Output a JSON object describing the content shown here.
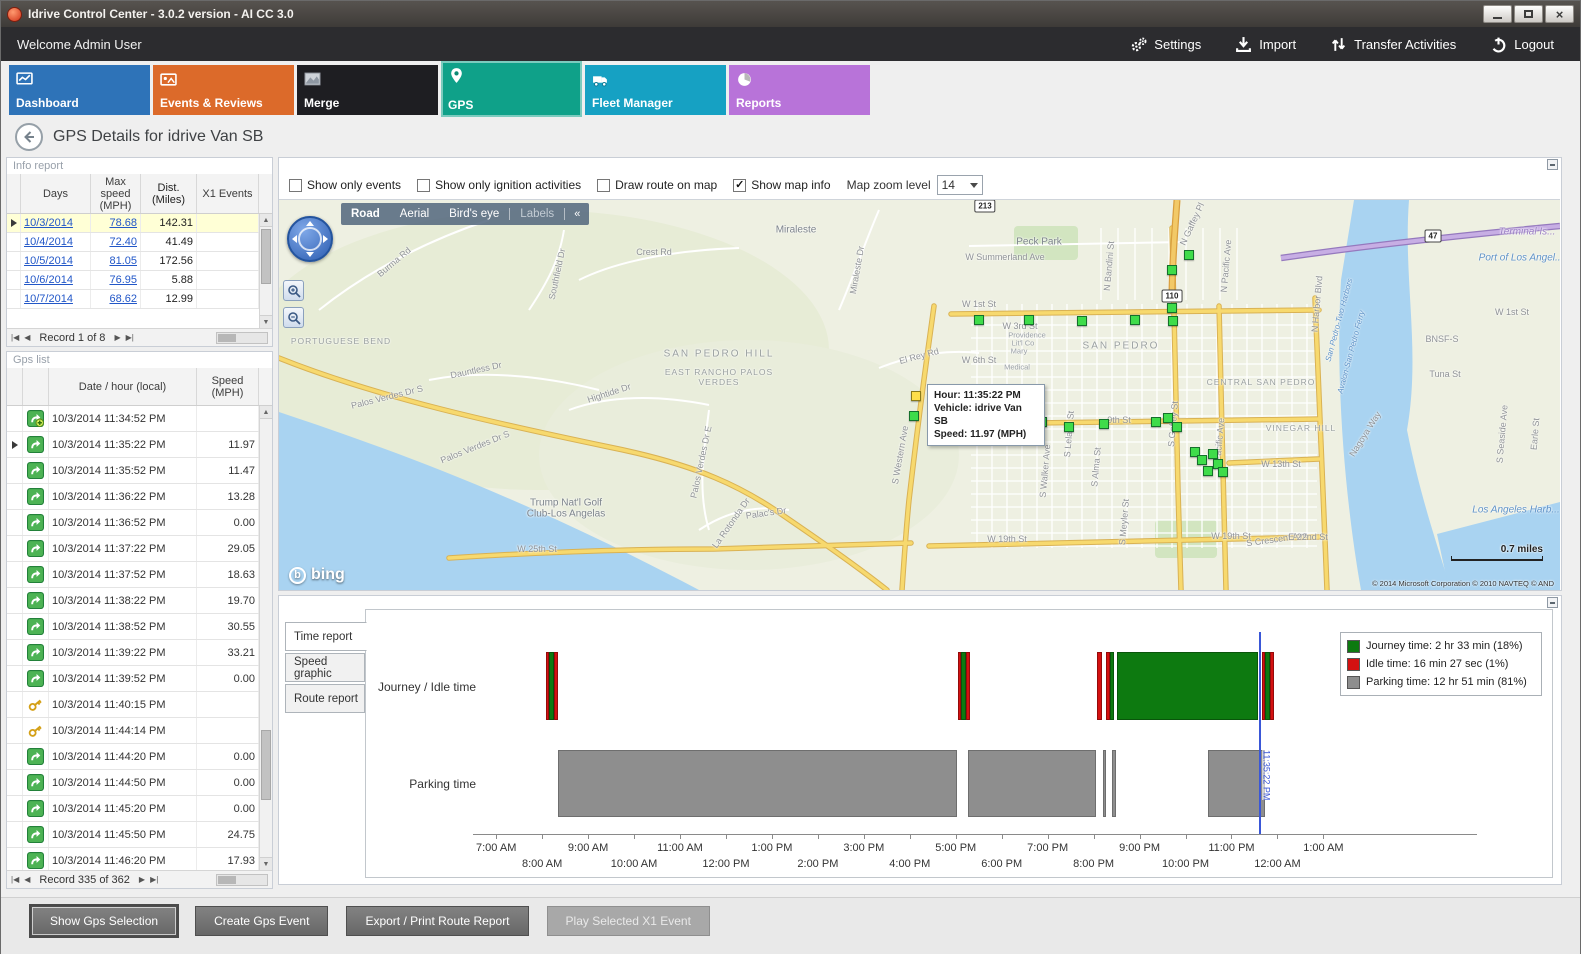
{
  "window": {
    "title": "Idrive Control Center - 3.0.2 version - AI CC 3.0"
  },
  "topbar": {
    "welcome": "Welcome Admin User",
    "actions": [
      {
        "id": "settings",
        "label": "Settings"
      },
      {
        "id": "import",
        "label": "Import"
      },
      {
        "id": "transfer",
        "label": "Transfer Activities"
      },
      {
        "id": "logout",
        "label": "Logout"
      }
    ]
  },
  "nav": {
    "tabs": [
      {
        "id": "dashboard",
        "label": "Dashboard",
        "color": "#2e73b8",
        "selected": false
      },
      {
        "id": "events",
        "label": "Events & Reviews",
        "color": "#dc6a2a",
        "selected": false
      },
      {
        "id": "merge",
        "label": "Merge",
        "color": "#1e1e22",
        "selected": false
      },
      {
        "id": "gps",
        "label": "GPS",
        "color": "#0fa189",
        "selected": true
      },
      {
        "id": "fleet",
        "label": "Fleet Manager",
        "color": "#16a1c3",
        "selected": false
      },
      {
        "id": "reports",
        "label": "Reports",
        "color": "#b873d9",
        "selected": false
      }
    ]
  },
  "page": {
    "title": "GPS Details for idrive Van SB"
  },
  "info_report": {
    "title": "Info report",
    "columns": [
      "Days",
      "Max speed (MPH)",
      "Dist. (Miles)",
      "X1 Events"
    ],
    "rows": [
      {
        "days": "10/3/2014",
        "max_speed": "78.68",
        "dist": "142.31",
        "x1": "",
        "selected": true
      },
      {
        "days": "10/4/2014",
        "max_speed": "72.40",
        "dist": "41.49",
        "x1": "",
        "selected": false
      },
      {
        "days": "10/5/2014",
        "max_speed": "81.05",
        "dist": "172.56",
        "x1": "",
        "selected": false
      },
      {
        "days": "10/6/2014",
        "max_speed": "76.95",
        "dist": "5.88",
        "x1": "",
        "selected": false
      },
      {
        "days": "10/7/2014",
        "max_speed": "68.62",
        "dist": "12.99",
        "x1": "",
        "selected": false
      }
    ],
    "pager": {
      "text": "Record 1 of 8"
    }
  },
  "gps_list": {
    "title": "Gps list",
    "columns": [
      "Date / hour (local)",
      "Speed (MPH)"
    ],
    "rows": [
      {
        "icon": "start",
        "time": "10/3/2014 11:34:52 PM",
        "speed": "",
        "selected": false
      },
      {
        "icon": "point",
        "time": "10/3/2014 11:35:22 PM",
        "speed": "11.97",
        "selected": true
      },
      {
        "icon": "point",
        "time": "10/3/2014 11:35:52 PM",
        "speed": "11.47",
        "selected": false
      },
      {
        "icon": "point",
        "time": "10/3/2014 11:36:22 PM",
        "speed": "13.28",
        "selected": false
      },
      {
        "icon": "point",
        "time": "10/3/2014 11:36:52 PM",
        "speed": "0.00",
        "selected": false
      },
      {
        "icon": "point",
        "time": "10/3/2014 11:37:22 PM",
        "speed": "29.05",
        "selected": false
      },
      {
        "icon": "point",
        "time": "10/3/2014 11:37:52 PM",
        "speed": "18.63",
        "selected": false
      },
      {
        "icon": "point",
        "time": "10/3/2014 11:38:22 PM",
        "speed": "19.70",
        "selected": false
      },
      {
        "icon": "point",
        "time": "10/3/2014 11:38:52 PM",
        "speed": "30.55",
        "selected": false
      },
      {
        "icon": "point",
        "time": "10/3/2014 11:39:22 PM",
        "speed": "33.21",
        "selected": false
      },
      {
        "icon": "point",
        "time": "10/3/2014 11:39:52 PM",
        "speed": "0.00",
        "selected": false
      },
      {
        "icon": "key",
        "time": "10/3/2014 11:40:15 PM",
        "speed": "",
        "selected": false
      },
      {
        "icon": "key",
        "time": "10/3/2014 11:44:14 PM",
        "speed": "",
        "selected": false
      },
      {
        "icon": "point",
        "time": "10/3/2014 11:44:20 PM",
        "speed": "0.00",
        "selected": false
      },
      {
        "icon": "point",
        "time": "10/3/2014 11:44:50 PM",
        "speed": "0.00",
        "selected": false
      },
      {
        "icon": "point",
        "time": "10/3/2014 11:45:20 PM",
        "speed": "0.00",
        "selected": false
      },
      {
        "icon": "point",
        "time": "10/3/2014 11:45:50 PM",
        "speed": "24.75",
        "selected": false
      },
      {
        "icon": "point",
        "time": "10/3/2014 11:46:20 PM",
        "speed": "17.93",
        "selected": false
      }
    ],
    "pager": {
      "text": "Record 335 of 362"
    }
  },
  "map_toolbar": {
    "checkboxes": [
      {
        "label": "Show only events",
        "checked": false
      },
      {
        "label": "Show only ignition activities",
        "checked": false
      },
      {
        "label": "Draw route on map",
        "checked": false
      },
      {
        "label": "Show map info",
        "checked": true
      }
    ],
    "zoom_label": "Map zoom level",
    "zoom_value": "14"
  },
  "map": {
    "view_modes": [
      {
        "label": "Road",
        "active": true,
        "disabled": false
      },
      {
        "label": "Aerial",
        "active": false,
        "disabled": false
      },
      {
        "label": "Bird's eye",
        "active": false,
        "disabled": false
      },
      {
        "label": "Labels",
        "active": false,
        "disabled": true
      }
    ],
    "collapse_glyph": "«",
    "brand": "bing",
    "scale_label": "0.7 miles",
    "copyright": "© 2014 Microsoft Corporation   © 2010 NAVTEQ   © AND",
    "tooltip": {
      "lines": [
        "Hour: 11:35:22 PM",
        "Vehicle: idrive Van SB",
        "Speed: 11.97 (MPH)"
      ]
    },
    "badges": [
      [
        "213",
        706,
        6
      ],
      [
        "110",
        893,
        96
      ],
      [
        "47",
        1154,
        36
      ]
    ],
    "labels": [
      [
        "Burma Rd",
        115,
        62,
        -40,
        "s"
      ],
      [
        "Crest Rd",
        375,
        52,
        0,
        "s"
      ],
      [
        "Southfield Dr",
        278,
        74,
        -78,
        "s"
      ],
      [
        "Miraleste Dr",
        578,
        70,
        -80,
        "s"
      ],
      [
        "Miraleste",
        517,
        30,
        0,
        "t"
      ],
      [
        "W Summerland Ave",
        726,
        57,
        0,
        "s"
      ],
      [
        "Peck Park",
        760,
        42,
        0,
        "t"
      ],
      [
        "N Bandini St",
        830,
        66,
        -85,
        "s"
      ],
      [
        "N Gaffey Pl",
        913,
        24,
        -65,
        "s"
      ],
      [
        "N Pacific Ave",
        947,
        66,
        -85,
        "s"
      ],
      [
        "N Harbor Blvd",
        1038,
        104,
        -85,
        "s"
      ],
      [
        "W 1st St",
        700,
        104,
        0,
        "s"
      ],
      [
        "W 1st St",
        1233,
        112,
        0,
        "s"
      ],
      [
        "W 3rd St",
        741,
        126,
        0,
        "s"
      ],
      [
        "Providence",
        748,
        135,
        0,
        "s2"
      ],
      [
        "Lit'l Co",
        744,
        143,
        0,
        "s2"
      ],
      [
        "Mary",
        740,
        151,
        0,
        "s2"
      ],
      [
        "Medical",
        738,
        167,
        0,
        "s2"
      ],
      [
        "W 6th St",
        700,
        160,
        0,
        "s"
      ],
      [
        "SAN PEDRO",
        842,
        146,
        0,
        "c"
      ],
      [
        "CENTRAL SAN PEDRO",
        982,
        182,
        0,
        "c2"
      ],
      [
        "El Rey Rd",
        640,
        156,
        -15,
        "s"
      ],
      [
        "SAN PEDRO HILL",
        440,
        154,
        0,
        "c"
      ],
      [
        "EAST RANCHO PALOS",
        440,
        172,
        0,
        "c2"
      ],
      [
        "VERDES",
        440,
        182,
        0,
        "c2"
      ],
      [
        "Dauntless Dr",
        197,
        170,
        -12,
        "s"
      ],
      [
        "Hightide Dr",
        330,
        193,
        -18,
        "s"
      ],
      [
        "PORTUGUESE BEND",
        62,
        141,
        0,
        "c2"
      ],
      [
        "Palos Verdes Dr S",
        108,
        197,
        -14,
        "s"
      ],
      [
        "Palos Verdes Dr S",
        196,
        247,
        -22,
        "s"
      ],
      [
        "Palos Verdes Dr E",
        422,
        262,
        -78,
        "s"
      ],
      [
        "Trump Nat'l Golf",
        287,
        303,
        0,
        "t"
      ],
      [
        "Club-Los Angelas",
        287,
        314,
        0,
        "t"
      ],
      [
        "La Rotonda Dr",
        452,
        323,
        -55,
        "s"
      ],
      [
        "Palac's Dr",
        487,
        313,
        -8,
        "s"
      ],
      [
        "W 25th St",
        258,
        349,
        0,
        "s"
      ],
      [
        "S Western Ave",
        621,
        255,
        -80,
        "s"
      ],
      [
        "W 19th St",
        728,
        339,
        0,
        "s"
      ],
      [
        "W 19th St",
        952,
        336,
        0,
        "s"
      ],
      [
        "9th St",
        840,
        220,
        0,
        "s"
      ],
      [
        "W 13th St",
        1002,
        264,
        0,
        "s"
      ],
      [
        "VINEGAR HILL",
        1022,
        228,
        0,
        "c2"
      ],
      [
        "S Walker Ave",
        766,
        271,
        -85,
        "s"
      ],
      [
        "S Leland St",
        790,
        234,
        -85,
        "s"
      ],
      [
        "S Alma St",
        817,
        267,
        -85,
        "s"
      ],
      [
        "S Meyler St",
        845,
        322,
        -85,
        "s"
      ],
      [
        "S Gaffey St",
        894,
        224,
        -85,
        "s"
      ],
      [
        "S Pacific Ave",
        940,
        244,
        -85,
        "s"
      ],
      [
        "S Crescent Ave",
        998,
        339,
        -8,
        "s"
      ],
      [
        "E 22nd St",
        1029,
        337,
        0,
        "s"
      ],
      [
        "Nagoya Way",
        1086,
        234,
        -58,
        "s"
      ],
      [
        "San Pedro-Two Harbors",
        1060,
        120,
        -75,
        "w2"
      ],
      [
        "Avalon-San Pedro Ferry",
        1072,
        152,
        -75,
        "w2"
      ],
      [
        "BNSF-S",
        1163,
        139,
        0,
        "s"
      ],
      [
        "Tuna St",
        1166,
        174,
        0,
        "s"
      ],
      [
        "S Seaside Ave",
        1223,
        234,
        -85,
        "s"
      ],
      [
        "Earle St",
        1256,
        234,
        -85,
        "s"
      ],
      [
        "Terminal Is...",
        1248,
        32,
        0,
        "i"
      ],
      [
        "Port of Los Angel...",
        1242,
        58,
        0,
        "w"
      ],
      [
        "Los Angeles Harb...",
        1237,
        310,
        0,
        "w"
      ]
    ],
    "markers": {
      "green": [
        [
          910,
          55
        ],
        [
          893,
          70
        ],
        [
          700,
          120
        ],
        [
          750,
          120
        ],
        [
          803,
          121
        ],
        [
          856,
          120
        ],
        [
          893,
          108
        ],
        [
          894,
          121
        ],
        [
          635,
          216
        ],
        [
          763,
          222
        ],
        [
          790,
          227
        ],
        [
          825,
          224
        ],
        [
          877,
          222
        ],
        [
          889,
          218
        ],
        [
          898,
          227
        ],
        [
          916,
          252
        ],
        [
          923,
          260
        ],
        [
          934,
          254
        ],
        [
          939,
          264
        ],
        [
          929,
          271
        ],
        [
          944,
          272
        ]
      ],
      "selected": [
        637,
        196
      ]
    }
  },
  "chart": {
    "tabs": [
      {
        "label": "Time report",
        "active": true
      },
      {
        "label": "Speed graphic",
        "active": false
      },
      {
        "label": "Route report",
        "active": false
      }
    ],
    "rows": [
      "Journey / Idle time",
      "Parking time"
    ],
    "x_ticks": [
      "7:00 AM",
      "8:00 AM",
      "9:00 AM",
      "10:00 AM",
      "11:00 AM",
      "12:00 PM",
      "1:00 PM",
      "2:00 PM",
      "3:00 PM",
      "4:00 PM",
      "5:00 PM",
      "6:00 PM",
      "7:00 PM",
      "8:00 PM",
      "9:00 PM",
      "10:00 PM",
      "11:00 PM",
      "12:00 AM",
      "1:00 AM"
    ],
    "legend": [
      {
        "label": "Journey time: 2 hr 33 min (18%)",
        "color": "#0d7a10"
      },
      {
        "label": "Idle time: 16 min 27 sec (1%)",
        "color": "#d41111"
      },
      {
        "label": "Parking time: 12 hr 51 min (81%)",
        "color": "#8e8e8e"
      }
    ],
    "segments": [
      {
        "row": "journey",
        "start": 1.08,
        "end": 1.15,
        "kind": "idle"
      },
      {
        "row": "journey",
        "start": 1.15,
        "end": 1.26,
        "kind": "journey"
      },
      {
        "row": "journey",
        "start": 1.26,
        "end": 1.34,
        "kind": "idle"
      },
      {
        "row": "journey",
        "start": 10.04,
        "end": 10.12,
        "kind": "idle"
      },
      {
        "row": "journey",
        "start": 10.12,
        "end": 10.22,
        "kind": "journey"
      },
      {
        "row": "journey",
        "start": 10.22,
        "end": 10.3,
        "kind": "idle"
      },
      {
        "row": "journey",
        "start": 13.08,
        "end": 13.19,
        "kind": "idle"
      },
      {
        "row": "journey",
        "start": 13.26,
        "end": 13.36,
        "kind": "idle"
      },
      {
        "row": "journey",
        "start": 13.36,
        "end": 13.44,
        "kind": "journey"
      },
      {
        "row": "journey",
        "start": 13.5,
        "end": 16.58,
        "kind": "journey"
      },
      {
        "row": "journey",
        "start": 16.66,
        "end": 16.73,
        "kind": "idle"
      },
      {
        "row": "journey",
        "start": 16.73,
        "end": 16.83,
        "kind": "journey"
      },
      {
        "row": "journey",
        "start": 16.83,
        "end": 16.92,
        "kind": "idle"
      },
      {
        "row": "parking",
        "start": 1.34,
        "end": 10.02,
        "kind": "parking"
      },
      {
        "row": "parking",
        "start": 10.26,
        "end": 13.06,
        "kind": "parking"
      },
      {
        "row": "parking",
        "start": 13.2,
        "end": 13.28,
        "kind": "parking"
      },
      {
        "row": "parking",
        "start": 13.4,
        "end": 13.48,
        "kind": "parking"
      },
      {
        "row": "parking",
        "start": 15.48,
        "end": 16.73,
        "kind": "parking"
      }
    ],
    "cursor": {
      "hour": 16.589,
      "label": "11:35:22 PM"
    }
  },
  "footer": {
    "buttons": [
      {
        "label": "Show Gps Selection",
        "enabled": true,
        "focused": true
      },
      {
        "label": "Create Gps Event",
        "enabled": true,
        "focused": false
      },
      {
        "label": "Export / Print Route Report",
        "enabled": true,
        "focused": false
      },
      {
        "label": "Play Selected X1 Event",
        "enabled": false,
        "focused": false
      }
    ]
  }
}
